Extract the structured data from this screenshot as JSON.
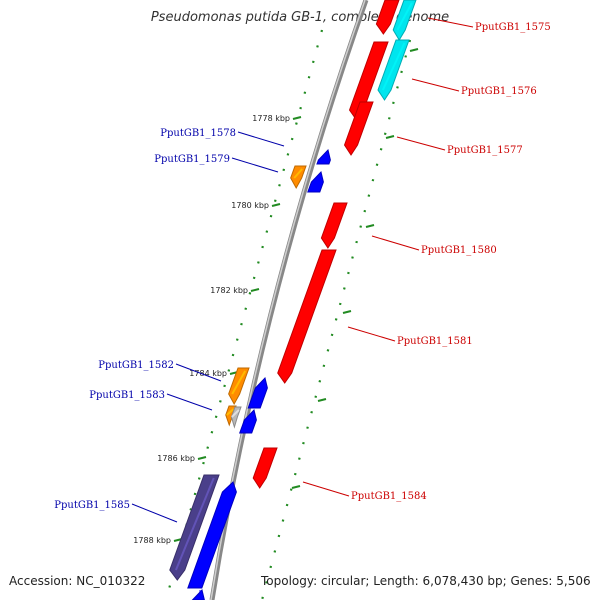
{
  "title": "Pseudomonas putida GB-1, complete genome",
  "footer": {
    "accession": "Accession: NC_010322",
    "topology": "Topology: circular; Length: 6,078,430 bp; Genes: 5,506"
  },
  "colors": {
    "backbone": "#888888",
    "label_forward": "#cc0000",
    "label_reverse": "#0000aa",
    "gene_forward": "#ff0000",
    "gene_reverse": "#0000ff",
    "gene_cyan": "#00e5ee",
    "gene_orange": "#ff8c00",
    "gene_gray": "#b8b8b8",
    "gene_purple": "#4a3f8a",
    "tick": "#228b22"
  },
  "ticks": [
    "1778 kbp",
    "1780 kbp",
    "1782 kbp",
    "1784 kbp",
    "1786 kbp",
    "1788 kbp"
  ],
  "gene_labels_right": [
    "PputGB1_1575",
    "PputGB1_1576",
    "PputGB1_1577",
    "PputGB1_1580",
    "PputGB1_1581",
    "PputGB1_1584"
  ],
  "gene_labels_left": [
    "PputGB1_1578",
    "PputGB1_1579",
    "PputGB1_1582",
    "PputGB1_1583",
    "PputGB1_1585"
  ]
}
